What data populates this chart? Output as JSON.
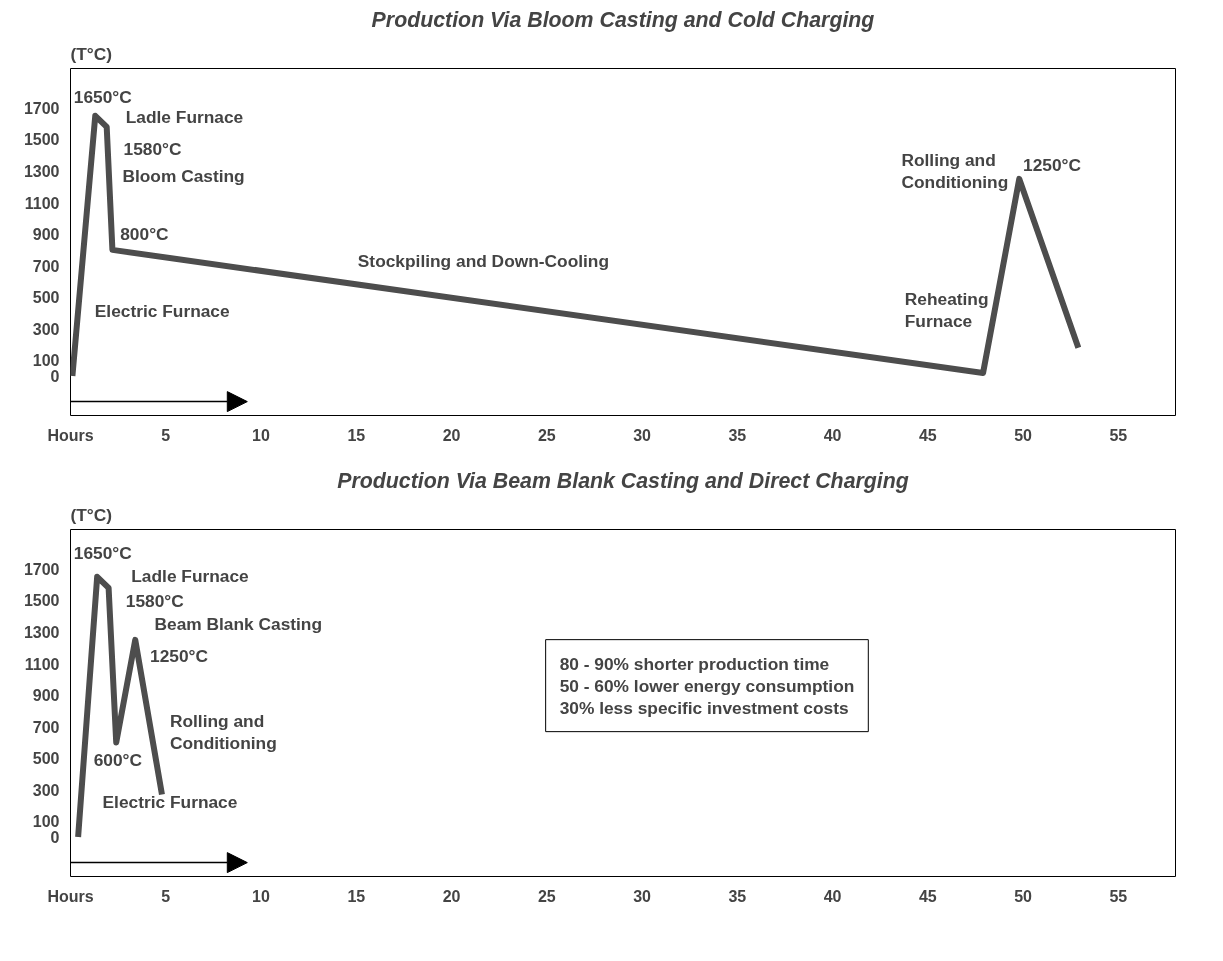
{
  "chart_data": [
    {
      "type": "line",
      "title": "Production Via Bloom Casting and Cold Charging",
      "ylabel": "(T°C)",
      "x": [
        0.1,
        1.3,
        1.9,
        2.2,
        47.9,
        49.8,
        52.9
      ],
      "series": [
        {
          "color": "#4d4d4d",
          "values": [
            0,
            1650,
            1580,
            800,
            20,
            1250,
            180
          ]
        }
      ],
      "xlim": [
        0,
        58
      ],
      "ylim": [
        -250,
        1950
      ],
      "xticks": [
        {
          "value": 0,
          "label": "Hours"
        },
        5,
        10,
        15,
        20,
        25,
        30,
        35,
        40,
        45,
        50,
        55
      ],
      "yticks": [
        0,
        100,
        300,
        500,
        700,
        900,
        1100,
        1300,
        1500,
        1700
      ],
      "grid": false,
      "marker": "none",
      "line_style": "solid",
      "annotations": [
        "1650°C",
        "Ladle Furnace",
        "1580°C",
        "Bloom Casting",
        "800°C",
        "Electric Furnace",
        "Stockpiling and Down-Cooling",
        "Reheating\nFurnace",
        "Rolling and\nConditioning",
        "1250°C"
      ]
    },
    {
      "type": "line",
      "title": "Production Via Beam Blank Casting and Direct Charging",
      "ylabel": "(T°C)",
      "x": [
        0.4,
        1.4,
        2.0,
        2.4,
        3.4,
        4.8
      ],
      "series": [
        {
          "color": "#4d4d4d",
          "values": [
            0,
            1650,
            1580,
            600,
            1250,
            270
          ]
        }
      ],
      "xlim": [
        0,
        58
      ],
      "ylim": [
        -250,
        1950
      ],
      "xticks": [
        {
          "value": 0,
          "label": "Hours"
        },
        5,
        10,
        15,
        20,
        25,
        30,
        35,
        40,
        45,
        50,
        55
      ],
      "yticks": [
        0,
        100,
        300,
        500,
        700,
        900,
        1100,
        1300,
        1500,
        1700
      ],
      "grid": false,
      "marker": "none",
      "line_style": "solid",
      "annotations": [
        "1650°C",
        "Ladle Furnace",
        "1580°C",
        "Beam Blank Casting",
        "1250°C",
        "600°C",
        "Rolling and\nConditioning",
        "Electric Furnace",
        "80 - 90% shorter production time\n50 - 60% lower energy consumption\n30% less specific investment costs"
      ]
    }
  ]
}
